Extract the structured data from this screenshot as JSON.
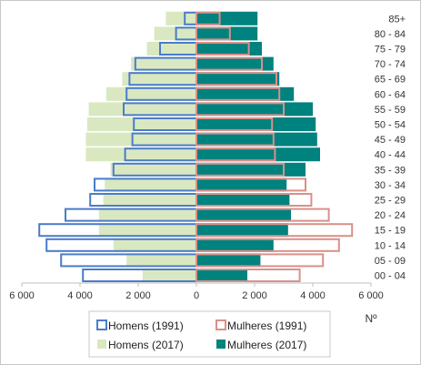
{
  "chart_data": {
    "type": "bar",
    "orientation": "horizontal",
    "layout": "population-pyramid",
    "categories": [
      "00 - 04",
      "05 - 09",
      "10 - 14",
      "15 - 19",
      "20 - 24",
      "25 - 29",
      "30 - 34",
      "35 - 39",
      "40 - 44",
      "45 - 49",
      "50 - 54",
      "55 - 59",
      "60 - 64",
      "65 - 69",
      "70 - 74",
      "75 - 79",
      "80 - 84",
      "85+"
    ],
    "xlabel": "Nº",
    "x_tick_labels": [
      "6 000",
      "4 000",
      "2 000",
      "0",
      "2 000",
      "4 000",
      "6 000"
    ],
    "xlim": [
      -6000,
      6000
    ],
    "grid": false,
    "legend_position": "bottom",
    "series": [
      {
        "name": "Homens (2017)",
        "side": "left",
        "style": "filled",
        "color": "#d9e8c0",
        "values": [
          1850,
          2400,
          2850,
          3350,
          3350,
          3200,
          3150,
          2950,
          3800,
          3800,
          3750,
          3700,
          3100,
          2550,
          2250,
          1700,
          1450,
          1050
        ]
      },
      {
        "name": "Mulheres (2017)",
        "side": "right",
        "style": "filled",
        "color": "#00827f",
        "values": [
          1750,
          2200,
          2650,
          3150,
          3250,
          3200,
          3100,
          3750,
          4250,
          4150,
          4100,
          4000,
          3350,
          2850,
          2650,
          2250,
          2100,
          2100
        ]
      },
      {
        "name": "Homens (1991)",
        "side": "left",
        "style": "outline",
        "color": "#4a7cc9",
        "values": [
          3900,
          4650,
          5150,
          5400,
          4500,
          3650,
          3500,
          2850,
          2450,
          2200,
          2150,
          2500,
          2400,
          2300,
          2100,
          1250,
          700,
          400
        ]
      },
      {
        "name": "Mulheres (1991)",
        "side": "right",
        "style": "outline",
        "color": "#d9908a",
        "values": [
          3550,
          4350,
          4900,
          5350,
          4550,
          3950,
          3750,
          3000,
          2700,
          2650,
          2600,
          3000,
          2850,
          2750,
          2250,
          1800,
          1150,
          800
        ]
      }
    ]
  },
  "legend": {
    "items": [
      {
        "label": "Homens (1991)",
        "style": "outline",
        "color": "#4a7cc9"
      },
      {
        "label": "Mulheres (1991)",
        "style": "outline",
        "color": "#d9908a"
      },
      {
        "label": "Homens (2017)",
        "style": "filled",
        "color": "#d9e8c0"
      },
      {
        "label": "Mulheres (2017)",
        "style": "filled",
        "color": "#00827f"
      }
    ]
  }
}
